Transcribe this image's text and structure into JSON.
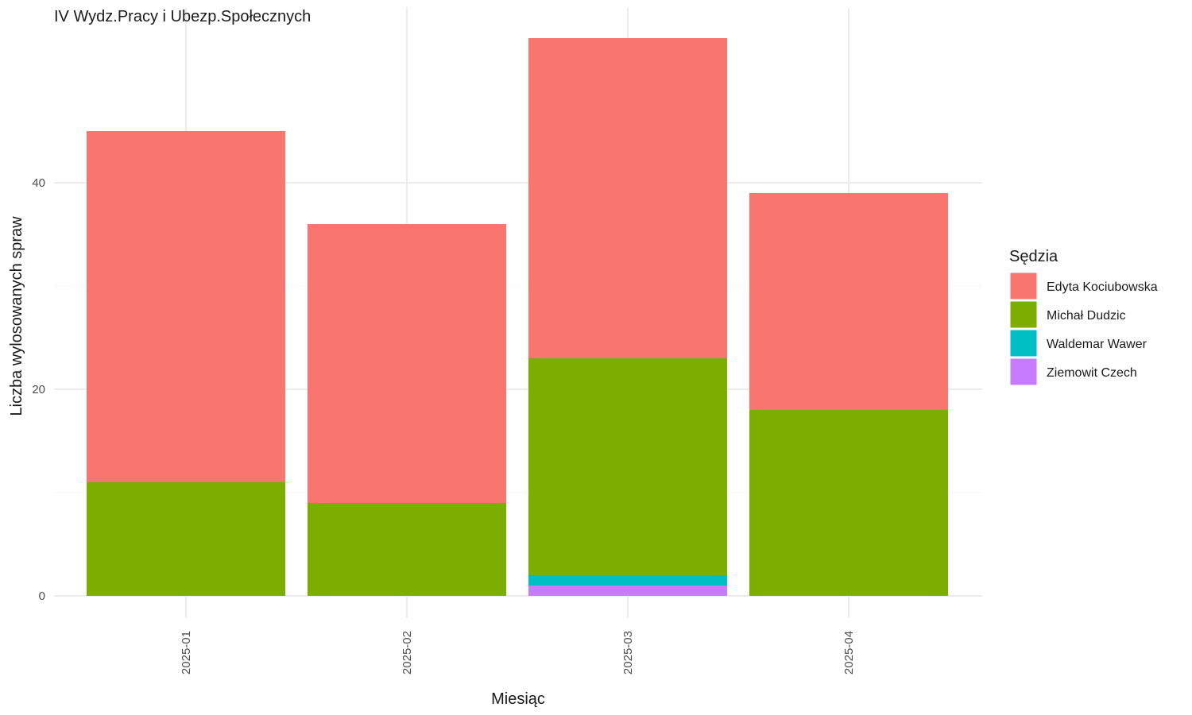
{
  "chart_data": {
    "type": "bar",
    "stacked": true,
    "title": "IV Wydz.Pracy i Ubezp.Społecznych",
    "xlabel": "Miesiąc",
    "ylabel": "Liczba wylosowanych spraw",
    "categories": [
      "2025-01",
      "2025-02",
      "2025-03",
      "2025-04"
    ],
    "ylim": [
      0,
      56
    ],
    "yticks": [
      0,
      20,
      40
    ],
    "grid": true,
    "legend": {
      "title": "Sędzia",
      "position": "right"
    },
    "series": [
      {
        "name": "Ziemowit Czech",
        "color": "#C77CFF",
        "values": [
          0,
          0,
          1,
          0
        ]
      },
      {
        "name": "Waldemar Wawer",
        "color": "#00BFC4",
        "values": [
          0,
          0,
          1,
          0
        ]
      },
      {
        "name": "Michał Dudzic",
        "color": "#7CAE00",
        "values": [
          11,
          9,
          21,
          18
        ]
      },
      {
        "name": "Edyta Kociubowska",
        "color": "#F8766D",
        "values": [
          34,
          27,
          31,
          21
        ]
      }
    ],
    "legend_order": [
      "Edyta Kociubowska",
      "Michał Dudzic",
      "Waldemar Wawer",
      "Ziemowit Czech"
    ]
  }
}
